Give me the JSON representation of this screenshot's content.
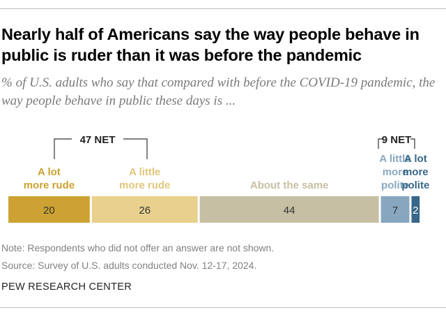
{
  "title": "Nearly half of Americans say the way people behave in public is ruder than it was before the pandemic",
  "subtitle": "% of U.S. adults who say that compared with before the COVID-19 pandemic, the way people behave in public these days is ...",
  "net_labels": {
    "rude": "47 NET",
    "polite": "9 NET"
  },
  "note": "Note: Respondents who did not offer an answer are not shown.",
  "source": "Source: Survey of U.S. adults conducted Nov. 12-17, 2024.",
  "brand": "PEW RESEARCH CENTER",
  "chart_data": {
    "type": "bar",
    "orientation": "horizontal-stacked",
    "categories": [
      "A lot more rude",
      "A little more rude",
      "About the same",
      "A little more polite",
      "A lot more polite"
    ],
    "values": [
      20,
      26,
      44,
      7,
      2
    ],
    "colors": [
      "#cda233",
      "#e8d08d",
      "#c7bfa3",
      "#88a7bf",
      "#376789"
    ],
    "label_colors": [
      "#cda233",
      "#e2c77a",
      "#c7bfa3",
      "#88a7bf",
      "#376789"
    ],
    "value_text_colors": [
      "#333333",
      "#333333",
      "#333333",
      "#333333",
      "#ffffff"
    ],
    "label_lines": [
      [
        "A lot",
        "more rude"
      ],
      [
        "A little",
        "more rude"
      ],
      [
        "About the same"
      ],
      [
        "A little",
        "more",
        "polite"
      ],
      [
        "A lot",
        "more",
        "polite"
      ]
    ]
  }
}
